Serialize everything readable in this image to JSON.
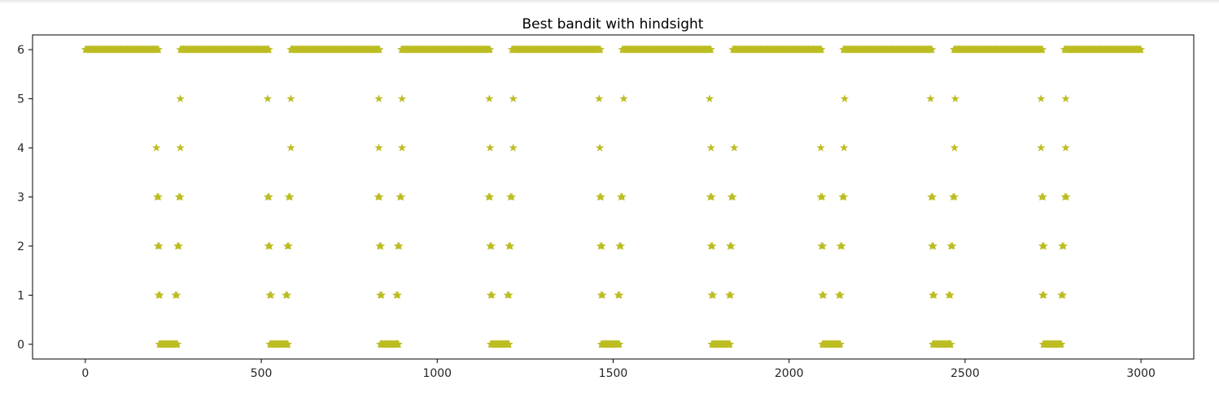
{
  "chart_data": {
    "type": "scatter",
    "title": "Best bandit with hindsight",
    "xlabel": "",
    "ylabel": "",
    "xlim": [
      -150,
      3150
    ],
    "ylim": [
      -0.3,
      6.3
    ],
    "xticks": [
      0,
      500,
      1000,
      1500,
      2000,
      2500,
      3000
    ],
    "yticks": [
      0,
      1,
      2,
      3,
      4,
      5,
      6
    ],
    "marker": "star",
    "marker_color": "#bcbd22",
    "grid": false,
    "legend": "none",
    "cycle_period": 314,
    "segments": [
      {
        "y": 6,
        "x_from": 0,
        "x_to": 208
      },
      {
        "y": 6,
        "x_from": 270,
        "x_to": 522
      },
      {
        "y": 6,
        "x_from": 584,
        "x_to": 836
      },
      {
        "y": 6,
        "x_from": 898,
        "x_to": 1150
      },
      {
        "y": 6,
        "x_from": 1212,
        "x_to": 1464
      },
      {
        "y": 6,
        "x_from": 1526,
        "x_to": 1778
      },
      {
        "y": 6,
        "x_from": 1840,
        "x_to": 2092
      },
      {
        "y": 6,
        "x_from": 2154,
        "x_to": 2406
      },
      {
        "y": 6,
        "x_from": 2468,
        "x_to": 2720
      },
      {
        "y": 6,
        "x_from": 2782,
        "x_to": 3000
      },
      {
        "y": 0,
        "x_from": 210,
        "x_to": 262
      },
      {
        "y": 0,
        "x_from": 524,
        "x_to": 576
      },
      {
        "y": 0,
        "x_from": 838,
        "x_to": 890
      },
      {
        "y": 0,
        "x_from": 1152,
        "x_to": 1204
      },
      {
        "y": 0,
        "x_from": 1466,
        "x_to": 1518
      },
      {
        "y": 0,
        "x_from": 1780,
        "x_to": 1832
      },
      {
        "y": 0,
        "x_from": 2094,
        "x_to": 2146
      },
      {
        "y": 0,
        "x_from": 2408,
        "x_to": 2460
      },
      {
        "y": 0,
        "x_from": 2722,
        "x_to": 2774
      }
    ],
    "points": [
      {
        "x": 270,
        "y": 5
      },
      {
        "x": 518,
        "y": 5
      },
      {
        "x": 584,
        "y": 5
      },
      {
        "x": 834,
        "y": 5
      },
      {
        "x": 900,
        "y": 5
      },
      {
        "x": 1148,
        "y": 5
      },
      {
        "x": 1216,
        "y": 5
      },
      {
        "x": 1460,
        "y": 5
      },
      {
        "x": 1530,
        "y": 5
      },
      {
        "x": 1774,
        "y": 5
      },
      {
        "x": 2158,
        "y": 5
      },
      {
        "x": 2402,
        "y": 5
      },
      {
        "x": 2472,
        "y": 5
      },
      {
        "x": 2716,
        "y": 5
      },
      {
        "x": 2786,
        "y": 5
      },
      {
        "x": 202,
        "y": 4
      },
      {
        "x": 270,
        "y": 4
      },
      {
        "x": 584,
        "y": 4
      },
      {
        "x": 834,
        "y": 4
      },
      {
        "x": 900,
        "y": 4
      },
      {
        "x": 1150,
        "y": 4
      },
      {
        "x": 1216,
        "y": 4
      },
      {
        "x": 1462,
        "y": 4
      },
      {
        "x": 1778,
        "y": 4
      },
      {
        "x": 1844,
        "y": 4
      },
      {
        "x": 2090,
        "y": 4
      },
      {
        "x": 2156,
        "y": 4
      },
      {
        "x": 2470,
        "y": 4
      },
      {
        "x": 2716,
        "y": 4
      },
      {
        "x": 2786,
        "y": 4
      },
      {
        "x": 204,
        "y": 3
      },
      {
        "x": 208,
        "y": 3
      },
      {
        "x": 266,
        "y": 3
      },
      {
        "x": 270,
        "y": 3
      },
      {
        "x": 518,
        "y": 3
      },
      {
        "x": 522,
        "y": 3
      },
      {
        "x": 578,
        "y": 3
      },
      {
        "x": 582,
        "y": 3
      },
      {
        "x": 832,
        "y": 3
      },
      {
        "x": 836,
        "y": 3
      },
      {
        "x": 894,
        "y": 3
      },
      {
        "x": 898,
        "y": 3
      },
      {
        "x": 1146,
        "y": 3
      },
      {
        "x": 1150,
        "y": 3
      },
      {
        "x": 1208,
        "y": 3
      },
      {
        "x": 1212,
        "y": 3
      },
      {
        "x": 1462,
        "y": 3
      },
      {
        "x": 1466,
        "y": 3
      },
      {
        "x": 1522,
        "y": 3
      },
      {
        "x": 1526,
        "y": 3
      },
      {
        "x": 1776,
        "y": 3
      },
      {
        "x": 1780,
        "y": 3
      },
      {
        "x": 1836,
        "y": 3
      },
      {
        "x": 1840,
        "y": 3
      },
      {
        "x": 2090,
        "y": 3
      },
      {
        "x": 2094,
        "y": 3
      },
      {
        "x": 2152,
        "y": 3
      },
      {
        "x": 2156,
        "y": 3
      },
      {
        "x": 2404,
        "y": 3
      },
      {
        "x": 2408,
        "y": 3
      },
      {
        "x": 2466,
        "y": 3
      },
      {
        "x": 2470,
        "y": 3
      },
      {
        "x": 2718,
        "y": 3
      },
      {
        "x": 2722,
        "y": 3
      },
      {
        "x": 2784,
        "y": 3
      },
      {
        "x": 2788,
        "y": 3
      },
      {
        "x": 206,
        "y": 2
      },
      {
        "x": 210,
        "y": 2
      },
      {
        "x": 262,
        "y": 2
      },
      {
        "x": 266,
        "y": 2
      },
      {
        "x": 520,
        "y": 2
      },
      {
        "x": 524,
        "y": 2
      },
      {
        "x": 574,
        "y": 2
      },
      {
        "x": 578,
        "y": 2
      },
      {
        "x": 836,
        "y": 2
      },
      {
        "x": 840,
        "y": 2
      },
      {
        "x": 888,
        "y": 2
      },
      {
        "x": 892,
        "y": 2
      },
      {
        "x": 1150,
        "y": 2
      },
      {
        "x": 1154,
        "y": 2
      },
      {
        "x": 1204,
        "y": 2
      },
      {
        "x": 1208,
        "y": 2
      },
      {
        "x": 1464,
        "y": 2
      },
      {
        "x": 1468,
        "y": 2
      },
      {
        "x": 1518,
        "y": 2
      },
      {
        "x": 1522,
        "y": 2
      },
      {
        "x": 1778,
        "y": 2
      },
      {
        "x": 1782,
        "y": 2
      },
      {
        "x": 1832,
        "y": 2
      },
      {
        "x": 1836,
        "y": 2
      },
      {
        "x": 2092,
        "y": 2
      },
      {
        "x": 2096,
        "y": 2
      },
      {
        "x": 2146,
        "y": 2
      },
      {
        "x": 2150,
        "y": 2
      },
      {
        "x": 2406,
        "y": 2
      },
      {
        "x": 2410,
        "y": 2
      },
      {
        "x": 2460,
        "y": 2
      },
      {
        "x": 2464,
        "y": 2
      },
      {
        "x": 2720,
        "y": 2
      },
      {
        "x": 2724,
        "y": 2
      },
      {
        "x": 2776,
        "y": 2
      },
      {
        "x": 2780,
        "y": 2
      },
      {
        "x": 208,
        "y": 1
      },
      {
        "x": 212,
        "y": 1
      },
      {
        "x": 256,
        "y": 1
      },
      {
        "x": 260,
        "y": 1
      },
      {
        "x": 524,
        "y": 1
      },
      {
        "x": 528,
        "y": 1
      },
      {
        "x": 570,
        "y": 1
      },
      {
        "x": 574,
        "y": 1
      },
      {
        "x": 838,
        "y": 1
      },
      {
        "x": 842,
        "y": 1
      },
      {
        "x": 884,
        "y": 1
      },
      {
        "x": 888,
        "y": 1
      },
      {
        "x": 1152,
        "y": 1
      },
      {
        "x": 1156,
        "y": 1
      },
      {
        "x": 1200,
        "y": 1
      },
      {
        "x": 1204,
        "y": 1
      },
      {
        "x": 1466,
        "y": 1
      },
      {
        "x": 1470,
        "y": 1
      },
      {
        "x": 1514,
        "y": 1
      },
      {
        "x": 1518,
        "y": 1
      },
      {
        "x": 1780,
        "y": 1
      },
      {
        "x": 1784,
        "y": 1
      },
      {
        "x": 1830,
        "y": 1
      },
      {
        "x": 1834,
        "y": 1
      },
      {
        "x": 2094,
        "y": 1
      },
      {
        "x": 2098,
        "y": 1
      },
      {
        "x": 2142,
        "y": 1
      },
      {
        "x": 2146,
        "y": 1
      },
      {
        "x": 2408,
        "y": 1
      },
      {
        "x": 2412,
        "y": 1
      },
      {
        "x": 2454,
        "y": 1
      },
      {
        "x": 2458,
        "y": 1
      },
      {
        "x": 2720,
        "y": 1
      },
      {
        "x": 2724,
        "y": 1
      },
      {
        "x": 2774,
        "y": 1
      },
      {
        "x": 2778,
        "y": 1
      }
    ]
  }
}
